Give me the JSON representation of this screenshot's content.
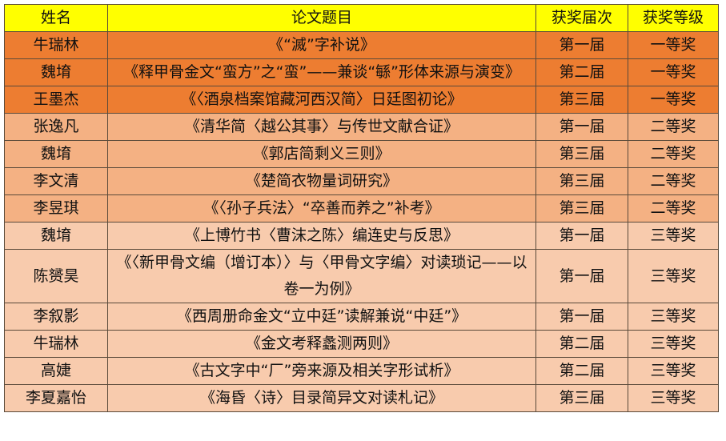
{
  "colors": {
    "header": "#ffff00",
    "first_prize": "#ed7d31",
    "second_prize": "#f4b183",
    "third_prize": "#f8cbad"
  },
  "headers": [
    "姓名",
    "论文题目",
    "获奖届次",
    "获奖等级"
  ],
  "rows": [
    {
      "name": "牛瑞林",
      "title": "《“滅”字补说》",
      "session": "第一届",
      "level": "一等奖",
      "tier": 1
    },
    {
      "name": "魏堉",
      "title": "《释甲骨金文“蛮方”之“蛮”——兼谈“緐”形体来源与演变》",
      "session": "第二届",
      "level": "一等奖",
      "tier": 1
    },
    {
      "name": "王墨杰",
      "title": "《〈酒泉档案馆藏河西汉简〉日廷图初论》",
      "session": "第三届",
      "level": "一等奖",
      "tier": 1
    },
    {
      "name": "张逸凡",
      "title": "《清华简〈越公其事〉与传世文献合证》",
      "session": "第一届",
      "level": "二等奖",
      "tier": 2
    },
    {
      "name": "魏堉",
      "title": "《郭店简剩义三则》",
      "session": "第三届",
      "level": "二等奖",
      "tier": 2
    },
    {
      "name": "李文清",
      "title": "《楚简衣物量词研究》",
      "session": "第三届",
      "level": "二等奖",
      "tier": 2
    },
    {
      "name": "李昱琪",
      "title": "《〈孙子兵法〉“卒善而养之”补考》",
      "session": "第三届",
      "level": "二等奖",
      "tier": 2
    },
    {
      "name": "魏堉",
      "title": "《上博竹书〈曹沫之陈〉编连史与反思》",
      "session": "第一届",
      "level": "三等奖",
      "tier": 3
    },
    {
      "name": "陈赟昊",
      "title": "《〈新甲骨文编（增订本）〉与〈甲骨文字编〉对读琐记——以卷一为例》",
      "session": "第一届",
      "level": "三等奖",
      "tier": 3
    },
    {
      "name": "李叙影",
      "title": "《西周册命金文“立中廷”读解兼说“中廷”》",
      "session": "第一届",
      "level": "三等奖",
      "tier": 3
    },
    {
      "name": "牛瑞林",
      "title": "《金文考释蠡测两则》",
      "session": "第二届",
      "level": "三等奖",
      "tier": 3
    },
    {
      "name": "高婕",
      "title": "《古文字中“厂”旁来源及相关字形试析》",
      "session": "第二届",
      "level": "三等奖",
      "tier": 3
    },
    {
      "name": "李夏嘉怡",
      "title": "《海昏〈诗〉目录简异文对读札记》",
      "session": "第三届",
      "level": "三等奖",
      "tier": 3
    }
  ]
}
